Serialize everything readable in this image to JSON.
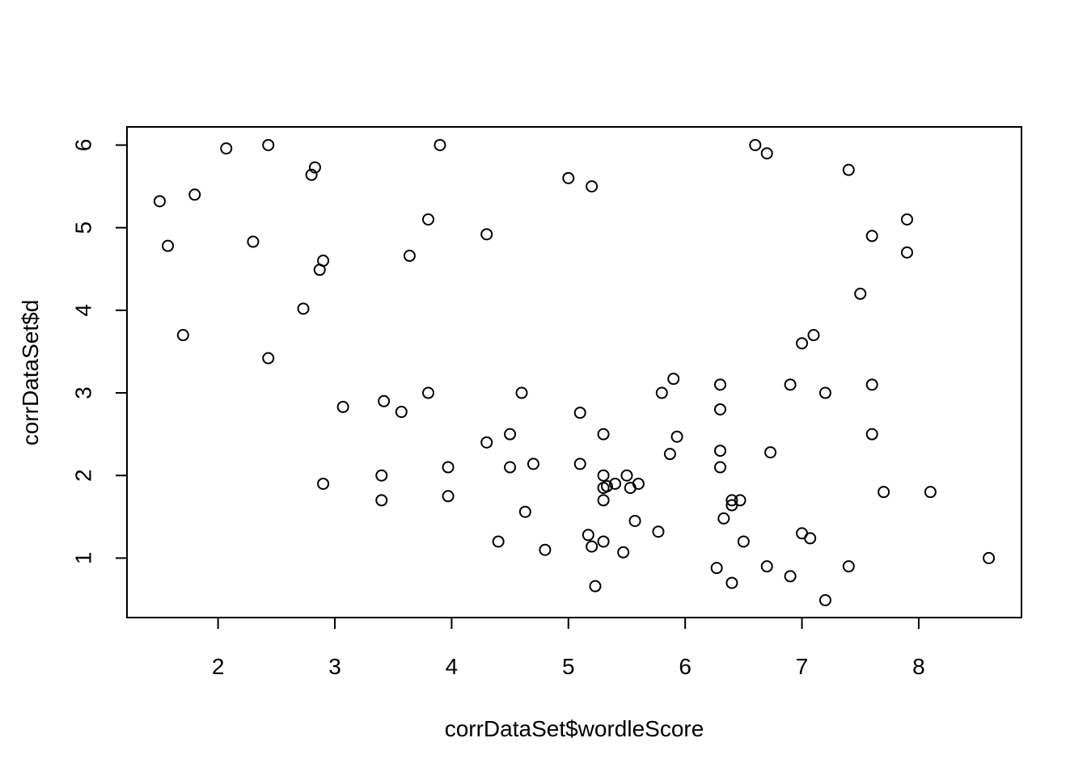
{
  "chart_data": {
    "type": "scatter",
    "title": "",
    "xlabel": "corrDataSet$wordleScore",
    "ylabel": "corrDataSet$d",
    "xlim": [
      1.22,
      8.88
    ],
    "ylim": [
      0.28,
      6.22
    ],
    "xticks": [
      2,
      3,
      4,
      5,
      6,
      7,
      8
    ],
    "yticks": [
      1,
      2,
      3,
      4,
      5,
      6
    ],
    "xtick_labels": [
      "2",
      "3",
      "4",
      "5",
      "6",
      "7",
      "8"
    ],
    "ytick_labels": [
      "1",
      "2",
      "3",
      "4",
      "5",
      "6"
    ],
    "grid": false,
    "marker": "open-circle",
    "points": [
      {
        "x": 1.5,
        "y": 5.32
      },
      {
        "x": 1.57,
        "y": 4.78
      },
      {
        "x": 1.7,
        "y": 3.7
      },
      {
        "x": 1.8,
        "y": 5.4
      },
      {
        "x": 2.07,
        "y": 5.96
      },
      {
        "x": 2.3,
        "y": 4.83
      },
      {
        "x": 2.43,
        "y": 6.0
      },
      {
        "x": 2.43,
        "y": 3.42
      },
      {
        "x": 2.73,
        "y": 4.02
      },
      {
        "x": 2.8,
        "y": 5.64
      },
      {
        "x": 2.83,
        "y": 5.73
      },
      {
        "x": 2.87,
        "y": 4.49
      },
      {
        "x": 2.9,
        "y": 4.6
      },
      {
        "x": 2.9,
        "y": 1.9
      },
      {
        "x": 3.07,
        "y": 2.83
      },
      {
        "x": 3.4,
        "y": 2.0
      },
      {
        "x": 3.4,
        "y": 1.7
      },
      {
        "x": 3.42,
        "y": 2.9
      },
      {
        "x": 3.57,
        "y": 2.77
      },
      {
        "x": 3.64,
        "y": 4.66
      },
      {
        "x": 3.8,
        "y": 5.1
      },
      {
        "x": 3.8,
        "y": 3.0
      },
      {
        "x": 3.9,
        "y": 6.0
      },
      {
        "x": 3.97,
        "y": 2.1
      },
      {
        "x": 3.97,
        "y": 1.75
      },
      {
        "x": 4.3,
        "y": 4.92
      },
      {
        "x": 4.3,
        "y": 2.4
      },
      {
        "x": 4.4,
        "y": 1.2
      },
      {
        "x": 4.5,
        "y": 2.5
      },
      {
        "x": 4.5,
        "y": 2.1
      },
      {
        "x": 4.6,
        "y": 3.0
      },
      {
        "x": 4.63,
        "y": 1.56
      },
      {
        "x": 4.7,
        "y": 2.14
      },
      {
        "x": 4.8,
        "y": 1.1
      },
      {
        "x": 5.0,
        "y": 5.6
      },
      {
        "x": 5.1,
        "y": 2.76
      },
      {
        "x": 5.1,
        "y": 2.14
      },
      {
        "x": 5.17,
        "y": 1.28
      },
      {
        "x": 5.2,
        "y": 5.5
      },
      {
        "x": 5.2,
        "y": 1.14
      },
      {
        "x": 5.23,
        "y": 0.66
      },
      {
        "x": 5.3,
        "y": 2.5
      },
      {
        "x": 5.3,
        "y": 2.0
      },
      {
        "x": 5.3,
        "y": 1.85
      },
      {
        "x": 5.3,
        "y": 1.7
      },
      {
        "x": 5.3,
        "y": 1.2
      },
      {
        "x": 5.33,
        "y": 1.87
      },
      {
        "x": 5.4,
        "y": 1.9
      },
      {
        "x": 5.47,
        "y": 1.07
      },
      {
        "x": 5.5,
        "y": 2.0
      },
      {
        "x": 5.53,
        "y": 1.85
      },
      {
        "x": 5.57,
        "y": 1.45
      },
      {
        "x": 5.6,
        "y": 1.9
      },
      {
        "x": 5.77,
        "y": 1.32
      },
      {
        "x": 5.8,
        "y": 3.0
      },
      {
        "x": 5.87,
        "y": 2.26
      },
      {
        "x": 5.9,
        "y": 3.17
      },
      {
        "x": 5.93,
        "y": 2.47
      },
      {
        "x": 6.27,
        "y": 0.88
      },
      {
        "x": 6.3,
        "y": 3.1
      },
      {
        "x": 6.3,
        "y": 2.8
      },
      {
        "x": 6.3,
        "y": 2.3
      },
      {
        "x": 6.3,
        "y": 2.1
      },
      {
        "x": 6.33,
        "y": 1.48
      },
      {
        "x": 6.4,
        "y": 1.7
      },
      {
        "x": 6.4,
        "y": 1.64
      },
      {
        "x": 6.4,
        "y": 0.7
      },
      {
        "x": 6.47,
        "y": 1.7
      },
      {
        "x": 6.5,
        "y": 1.2
      },
      {
        "x": 6.6,
        "y": 6.0
      },
      {
        "x": 6.7,
        "y": 5.9
      },
      {
        "x": 6.7,
        "y": 0.9
      },
      {
        "x": 6.73,
        "y": 2.28
      },
      {
        "x": 6.9,
        "y": 3.1
      },
      {
        "x": 6.9,
        "y": 0.78
      },
      {
        "x": 7.0,
        "y": 3.6
      },
      {
        "x": 7.0,
        "y": 1.3
      },
      {
        "x": 7.07,
        "y": 1.24
      },
      {
        "x": 7.1,
        "y": 3.7
      },
      {
        "x": 7.2,
        "y": 3.0
      },
      {
        "x": 7.2,
        "y": 0.49
      },
      {
        "x": 7.4,
        "y": 5.7
      },
      {
        "x": 7.4,
        "y": 0.9
      },
      {
        "x": 7.5,
        "y": 4.2
      },
      {
        "x": 7.6,
        "y": 4.9
      },
      {
        "x": 7.6,
        "y": 3.1
      },
      {
        "x": 7.6,
        "y": 2.5
      },
      {
        "x": 7.7,
        "y": 1.8
      },
      {
        "x": 7.9,
        "y": 5.1
      },
      {
        "x": 7.9,
        "y": 4.7
      },
      {
        "x": 8.1,
        "y": 1.8
      },
      {
        "x": 8.6,
        "y": 1.0
      }
    ]
  }
}
